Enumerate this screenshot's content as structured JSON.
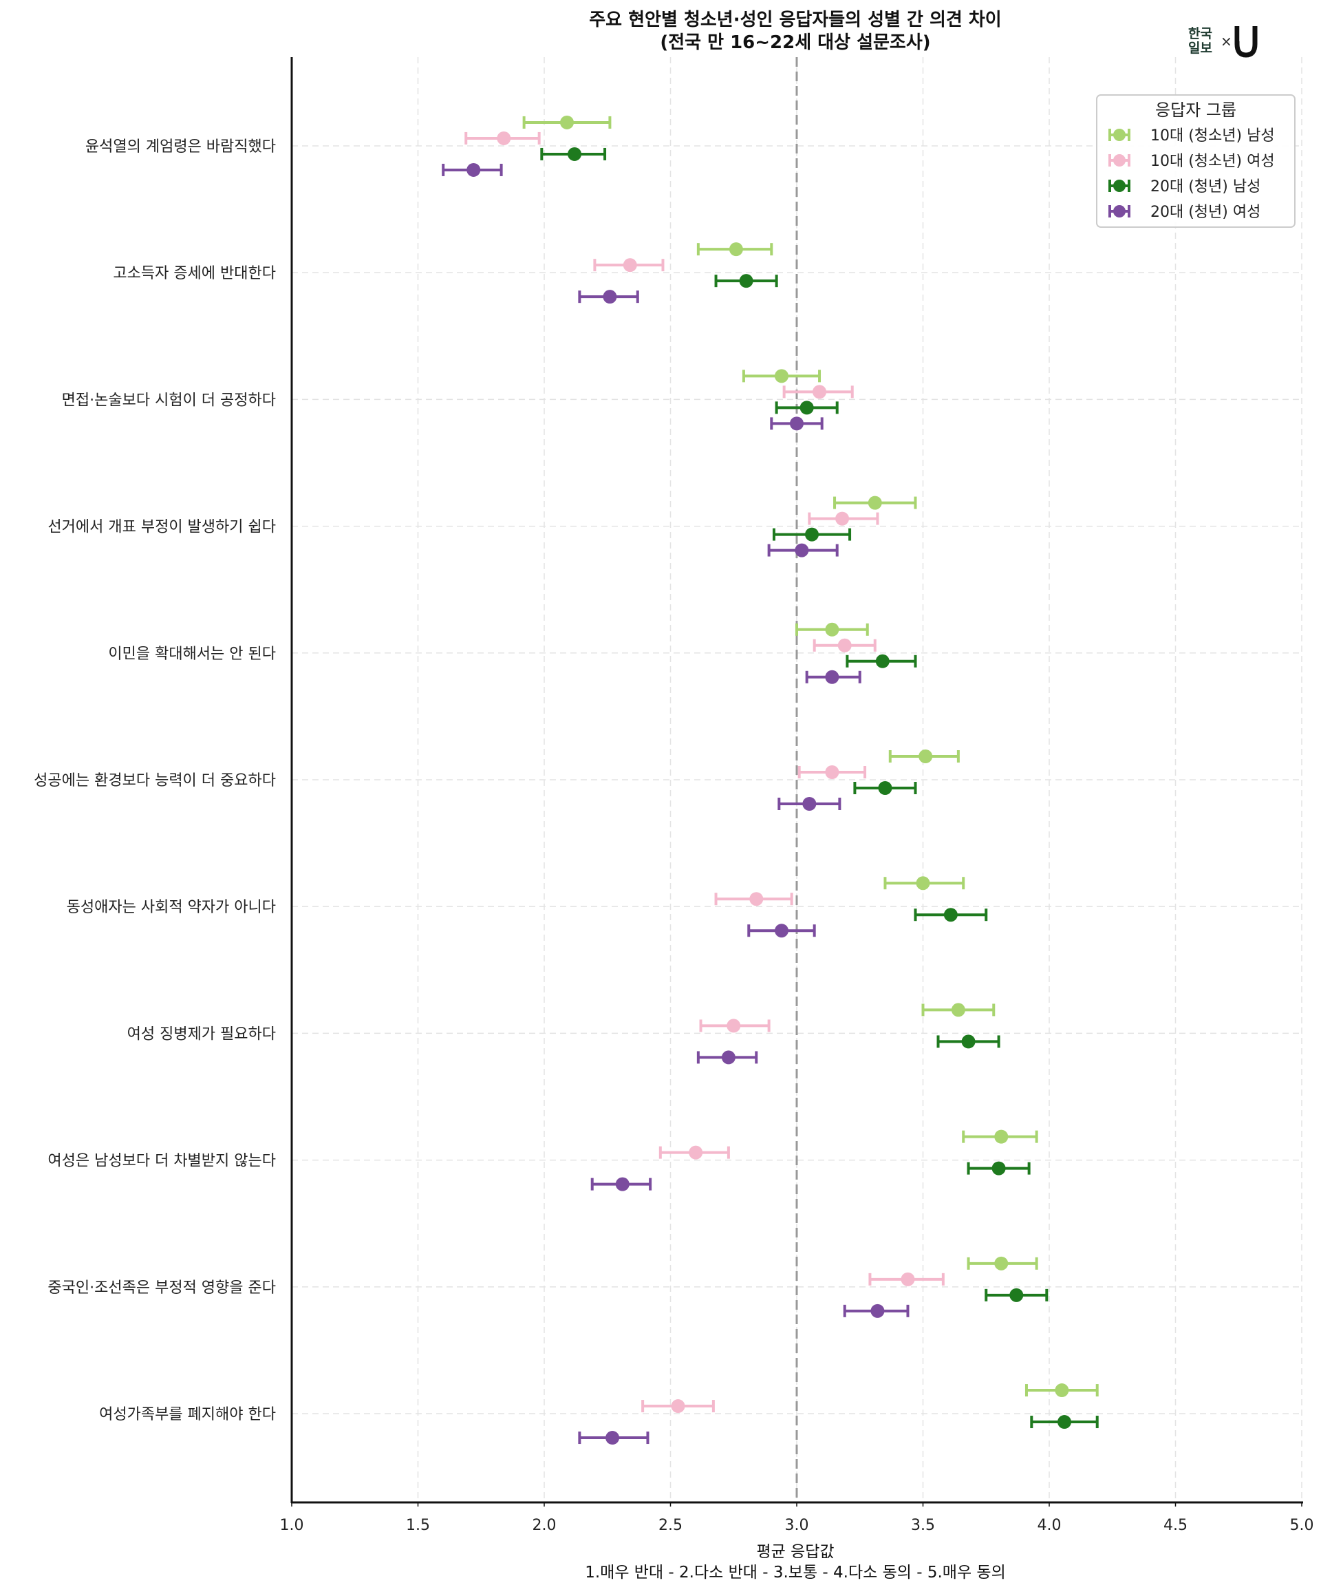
{
  "chart_data": {
    "type": "scatter",
    "subtype": "dot-plot-with-error-bars",
    "title": "주요 현안별 청소년·성인 응답자들의 성별 간 의견 차이",
    "subtitle": "(전국 만 16~22세 대상 설문조사)",
    "xlabel": "평균 응답값",
    "xlabel_sub": "1.매우 반대 - 2.다소 반대 - 3.보통 - 4.다소 동의 - 5.매우 동의",
    "ylabel": "",
    "xlim": [
      1.0,
      5.0
    ],
    "xticks": [
      "1.0",
      "1.5",
      "2.0",
      "2.5",
      "3.0",
      "3.5",
      "4.0",
      "4.5",
      "5.0"
    ],
    "xtick_values": [
      1.0,
      1.5,
      2.0,
      2.5,
      3.0,
      3.5,
      4.0,
      4.5,
      5.0
    ],
    "reference_line": {
      "x": 3.0,
      "style": "dashed",
      "color": "#999999"
    },
    "grid": true,
    "legend": {
      "title": "응답자 그룹",
      "placement": "top-right"
    },
    "categories": [
      "윤석열의 계엄령은 바람직했다",
      "고소득자 증세에 반대한다",
      "면접·논술보다 시험이 더 공정하다",
      "선거에서 개표 부정이 발생하기 쉽다",
      "이민을 확대해서는 안 된다",
      "성공에는 환경보다 능력이 더 중요하다",
      "동성애자는 사회적 약자가 아니다",
      "여성 징병제가 필요하다",
      "여성은 남성보다 더 차별받지 않는다",
      "중국인·조선족은 부정적 영향을 준다",
      "여성가족부를 폐지해야 한다"
    ],
    "series": [
      {
        "name": "10대 (청소년) 남성",
        "color": "#a8d46f",
        "values": [
          2.09,
          2.76,
          2.94,
          3.31,
          3.14,
          3.51,
          3.5,
          3.64,
          3.81,
          3.81,
          4.05
        ],
        "lower": [
          1.92,
          2.61,
          2.79,
          3.15,
          3.0,
          3.37,
          3.35,
          3.5,
          3.66,
          3.68,
          3.91
        ],
        "upper": [
          2.26,
          2.9,
          3.09,
          3.47,
          3.28,
          3.64,
          3.66,
          3.78,
          3.95,
          3.95,
          4.19
        ]
      },
      {
        "name": "10대 (청소년) 여성",
        "color": "#f4b8cc",
        "values": [
          1.84,
          2.34,
          3.09,
          3.18,
          3.19,
          3.14,
          2.84,
          2.75,
          2.6,
          3.44,
          2.53
        ],
        "lower": [
          1.69,
          2.2,
          2.95,
          3.05,
          3.07,
          3.01,
          2.68,
          2.62,
          2.46,
          3.29,
          2.39
        ],
        "upper": [
          1.98,
          2.47,
          3.22,
          3.32,
          3.31,
          3.27,
          2.98,
          2.89,
          2.73,
          3.58,
          2.67
        ]
      },
      {
        "name": "20대 (청년) 남성",
        "color": "#1e7a1e",
        "values": [
          2.12,
          2.8,
          3.04,
          3.06,
          3.34,
          3.35,
          3.61,
          3.68,
          3.8,
          3.87,
          4.06
        ],
        "lower": [
          1.99,
          2.68,
          2.92,
          2.91,
          3.2,
          3.23,
          3.47,
          3.56,
          3.68,
          3.75,
          3.93
        ],
        "upper": [
          2.24,
          2.92,
          3.16,
          3.21,
          3.47,
          3.47,
          3.75,
          3.8,
          3.92,
          3.99,
          4.19
        ]
      },
      {
        "name": "20대 (청년) 여성",
        "color": "#7b4c9e",
        "values": [
          1.72,
          2.26,
          3.0,
          3.02,
          3.14,
          3.05,
          2.94,
          2.73,
          2.31,
          3.32,
          2.27
        ],
        "lower": [
          1.6,
          2.14,
          2.9,
          2.89,
          3.04,
          2.93,
          2.81,
          2.61,
          2.19,
          3.19,
          2.14
        ],
        "upper": [
          1.83,
          2.37,
          3.1,
          3.16,
          3.25,
          3.17,
          3.07,
          2.84,
          2.42,
          3.44,
          2.41
        ]
      }
    ]
  },
  "logo": {
    "brand_line1": "한국",
    "brand_line2": "일보",
    "separator": "×",
    "partner_mark": "U"
  }
}
